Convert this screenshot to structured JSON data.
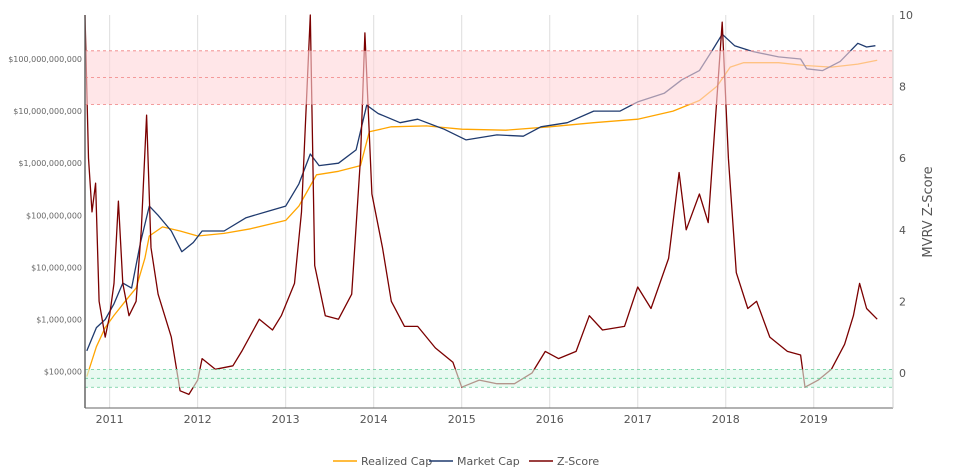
{
  "chart_data": {
    "type": "line",
    "title": "",
    "xlabel": "",
    "ylabel_left": "",
    "ylabel_right": "MVRV Z-Score",
    "xlim": [
      2010.72,
      2019.9
    ],
    "x_ticks": [
      "2011",
      "2012",
      "2013",
      "2014",
      "2015",
      "2016",
      "2017",
      "2018",
      "2019"
    ],
    "x_tick_values": [
      2011,
      2012,
      2013,
      2014,
      2015,
      2016,
      2017,
      2018,
      2019
    ],
    "y_left": {
      "scale": "log",
      "ylim": [
        20000,
        700000000000
      ],
      "ticks": [
        100000,
        1000000,
        10000000,
        100000000,
        1000000000,
        10000000000,
        100000000000
      ],
      "tick_labels": [
        "$100,000",
        "$1,000,000",
        "$10,000,000",
        "$100,000,000",
        "$1,000,000,000",
        "$10,000,000,000",
        "$100,000,000,000"
      ]
    },
    "y_right": {
      "scale": "linear",
      "ylim": [
        -0.98,
        10
      ],
      "ticks": [
        0,
        2,
        4,
        6,
        8,
        10
      ],
      "tick_labels": [
        "0",
        "2",
        "4",
        "6",
        "8",
        "10"
      ]
    },
    "bands": [
      {
        "axis": "right",
        "range": [
          7.5,
          9.0
        ],
        "color": "#ffd6d9",
        "line": "#f08080"
      },
      {
        "axis": "right",
        "range": [
          -0.4,
          0.1
        ],
        "color": "#d9f7e8",
        "line": "#66cc99"
      }
    ],
    "grid": "vertical",
    "legend": {
      "placement": "bottom",
      "entries": [
        "Realized Cap",
        "Market Cap",
        "Z-Score"
      ]
    },
    "series": [
      {
        "name": "Realized Cap",
        "axis": "left",
        "color": "#ffa500",
        "points": [
          [
            2010.74,
            80000
          ],
          [
            2010.85,
            300000
          ],
          [
            2010.95,
            700000
          ],
          [
            2011.05,
            1200000
          ],
          [
            2011.2,
            2500000
          ],
          [
            2011.3,
            4000000
          ],
          [
            2011.4,
            15000000
          ],
          [
            2011.45,
            40000000
          ],
          [
            2011.6,
            60000000
          ],
          [
            2011.8,
            50000000
          ],
          [
            2012.0,
            40000000
          ],
          [
            2012.3,
            45000000
          ],
          [
            2012.6,
            55000000
          ],
          [
            2013.0,
            80000000
          ],
          [
            2013.15,
            150000000
          ],
          [
            2013.25,
            300000000
          ],
          [
            2013.35,
            600000000
          ],
          [
            2013.6,
            700000000
          ],
          [
            2013.85,
            900000000
          ],
          [
            2013.95,
            4000000000
          ],
          [
            2014.2,
            5000000000
          ],
          [
            2014.6,
            5200000000
          ],
          [
            2015.0,
            4500000000
          ],
          [
            2015.5,
            4300000000
          ],
          [
            2016.0,
            5000000000
          ],
          [
            2016.5,
            6000000000
          ],
          [
            2017.0,
            7000000000
          ],
          [
            2017.4,
            10000000000
          ],
          [
            2017.7,
            16000000000
          ],
          [
            2017.9,
            30000000000
          ],
          [
            2018.05,
            70000000000
          ],
          [
            2018.2,
            85000000000
          ],
          [
            2018.6,
            85000000000
          ],
          [
            2018.9,
            75000000000
          ],
          [
            2019.2,
            70000000000
          ],
          [
            2019.5,
            80000000000
          ],
          [
            2019.72,
            95000000000
          ]
        ]
      },
      {
        "name": "Market Cap",
        "axis": "left",
        "color": "#1f3a6e",
        "points": [
          [
            2010.74,
            250000
          ],
          [
            2010.85,
            700000
          ],
          [
            2010.95,
            1000000
          ],
          [
            2011.05,
            2000000
          ],
          [
            2011.15,
            5000000
          ],
          [
            2011.25,
            4000000
          ],
          [
            2011.35,
            30000000
          ],
          [
            2011.45,
            150000000
          ],
          [
            2011.55,
            100000000
          ],
          [
            2011.7,
            50000000
          ],
          [
            2011.82,
            20000000
          ],
          [
            2011.95,
            30000000
          ],
          [
            2012.05,
            50000000
          ],
          [
            2012.3,
            50000000
          ],
          [
            2012.55,
            90000000
          ],
          [
            2012.8,
            120000000
          ],
          [
            2013.0,
            150000000
          ],
          [
            2013.15,
            400000000
          ],
          [
            2013.28,
            1500000000
          ],
          [
            2013.38,
            900000000
          ],
          [
            2013.6,
            1000000000
          ],
          [
            2013.8,
            1800000000
          ],
          [
            2013.92,
            13000000000
          ],
          [
            2014.05,
            9000000000
          ],
          [
            2014.3,
            6000000000
          ],
          [
            2014.5,
            7000000000
          ],
          [
            2014.8,
            4500000000
          ],
          [
            2015.05,
            2800000000
          ],
          [
            2015.4,
            3500000000
          ],
          [
            2015.7,
            3300000000
          ],
          [
            2015.9,
            5000000000
          ],
          [
            2016.2,
            6000000000
          ],
          [
            2016.5,
            10000000000
          ],
          [
            2016.8,
            10000000000
          ],
          [
            2017.0,
            15000000000
          ],
          [
            2017.3,
            22000000000
          ],
          [
            2017.5,
            40000000000
          ],
          [
            2017.7,
            60000000000
          ],
          [
            2017.85,
            150000000000
          ],
          [
            2017.96,
            300000000000
          ],
          [
            2018.1,
            180000000000
          ],
          [
            2018.3,
            140000000000
          ],
          [
            2018.6,
            110000000000
          ],
          [
            2018.85,
            100000000000
          ],
          [
            2018.92,
            65000000000
          ],
          [
            2019.1,
            60000000000
          ],
          [
            2019.3,
            90000000000
          ],
          [
            2019.5,
            200000000000
          ],
          [
            2019.6,
            170000000000
          ],
          [
            2019.7,
            180000000000
          ]
        ]
      },
      {
        "name": "Z-Score",
        "axis": "right",
        "color": "#7b0000",
        "points": [
          [
            2010.72,
            10
          ],
          [
            2010.76,
            6
          ],
          [
            2010.8,
            4.5
          ],
          [
            2010.84,
            5.3
          ],
          [
            2010.88,
            2
          ],
          [
            2010.95,
            1.0
          ],
          [
            2011.0,
            1.6
          ],
          [
            2011.05,
            2.5
          ],
          [
            2011.1,
            4.8
          ],
          [
            2011.15,
            2.5
          ],
          [
            2011.22,
            1.6
          ],
          [
            2011.3,
            2.0
          ],
          [
            2011.36,
            4
          ],
          [
            2011.42,
            7.2
          ],
          [
            2011.47,
            3.5
          ],
          [
            2011.55,
            2.2
          ],
          [
            2011.7,
            1.0
          ],
          [
            2011.8,
            -0.5
          ],
          [
            2011.9,
            -0.6
          ],
          [
            2012.0,
            -0.2
          ],
          [
            2012.05,
            0.4
          ],
          [
            2012.2,
            0.1
          ],
          [
            2012.4,
            0.2
          ],
          [
            2012.5,
            0.6
          ],
          [
            2012.7,
            1.5
          ],
          [
            2012.85,
            1.2
          ],
          [
            2012.95,
            1.6
          ],
          [
            2013.1,
            2.5
          ],
          [
            2013.18,
            4.5
          ],
          [
            2013.28,
            10
          ],
          [
            2013.33,
            3
          ],
          [
            2013.45,
            1.6
          ],
          [
            2013.6,
            1.5
          ],
          [
            2013.75,
            2.2
          ],
          [
            2013.85,
            6
          ],
          [
            2013.9,
            9.5
          ],
          [
            2013.98,
            5
          ],
          [
            2014.1,
            3.5
          ],
          [
            2014.2,
            2.0
          ],
          [
            2014.35,
            1.3
          ],
          [
            2014.5,
            1.3
          ],
          [
            2014.7,
            0.7
          ],
          [
            2014.9,
            0.3
          ],
          [
            2015.0,
            -0.4
          ],
          [
            2015.2,
            -0.2
          ],
          [
            2015.4,
            -0.3
          ],
          [
            2015.6,
            -0.3
          ],
          [
            2015.8,
            0.0
          ],
          [
            2015.95,
            0.6
          ],
          [
            2016.1,
            0.4
          ],
          [
            2016.3,
            0.6
          ],
          [
            2016.45,
            1.6
          ],
          [
            2016.6,
            1.2
          ],
          [
            2016.85,
            1.3
          ],
          [
            2017.0,
            2.4
          ],
          [
            2017.15,
            1.8
          ],
          [
            2017.35,
            3.2
          ],
          [
            2017.47,
            5.6
          ],
          [
            2017.55,
            4.0
          ],
          [
            2017.7,
            5.0
          ],
          [
            2017.8,
            4.2
          ],
          [
            2017.88,
            7.0
          ],
          [
            2017.96,
            9.8
          ],
          [
            2018.03,
            6
          ],
          [
            2018.12,
            2.8
          ],
          [
            2018.25,
            1.8
          ],
          [
            2018.35,
            2.0
          ],
          [
            2018.5,
            1.0
          ],
          [
            2018.7,
            0.6
          ],
          [
            2018.85,
            0.5
          ],
          [
            2018.9,
            -0.4
          ],
          [
            2019.05,
            -0.2
          ],
          [
            2019.2,
            0.1
          ],
          [
            2019.35,
            0.8
          ],
          [
            2019.45,
            1.6
          ],
          [
            2019.52,
            2.5
          ],
          [
            2019.6,
            1.8
          ],
          [
            2019.72,
            1.5
          ]
        ]
      }
    ]
  }
}
